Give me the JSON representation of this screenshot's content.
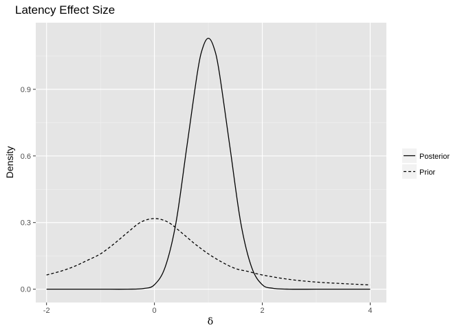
{
  "chart_data": {
    "type": "line",
    "title": "Latency Effect Size",
    "xlabel": "δ",
    "ylabel": "Density",
    "xlim": [
      -2.2,
      4.3
    ],
    "ylim": [
      -0.06,
      1.2
    ],
    "x_ticks": [
      -2,
      0,
      2,
      4
    ],
    "x_tick_labels": [
      "-2",
      "0",
      "2",
      "4"
    ],
    "y_ticks": [
      0,
      0.3,
      0.6,
      0.9
    ],
    "y_tick_labels": [
      "0.0",
      "0.3",
      "0.6",
      "0.9"
    ],
    "grid": true,
    "legend_position": "right",
    "background": "#e5e5e5",
    "series": [
      {
        "name": "Posterior",
        "linestyle": "solid",
        "color": "#000000",
        "x": [
          -2.0,
          -1.5,
          -1.0,
          -0.5,
          -0.2,
          0.0,
          0.2,
          0.4,
          0.6,
          0.8,
          0.9,
          1.0,
          1.1,
          1.2,
          1.4,
          1.6,
          1.8,
          2.0,
          2.2,
          2.5,
          3.0,
          3.5,
          4.0
        ],
        "y": [
          0.0,
          0.0,
          0.0,
          0.0,
          0.003,
          0.02,
          0.1,
          0.3,
          0.64,
          0.98,
          1.09,
          1.13,
          1.09,
          0.98,
          0.64,
          0.3,
          0.1,
          0.02,
          0.004,
          0.0,
          0.0,
          0.0,
          0.0
        ]
      },
      {
        "name": "Prior",
        "linestyle": "dashed",
        "color": "#000000",
        "x": [
          -2.0,
          -1.75,
          -1.5,
          -1.25,
          -1.0,
          -0.75,
          -0.5,
          -0.25,
          0.0,
          0.25,
          0.5,
          0.75,
          1.0,
          1.25,
          1.5,
          1.75,
          2.0,
          2.5,
          3.0,
          3.5,
          4.0
        ],
        "y": [
          0.064,
          0.08,
          0.101,
          0.129,
          0.159,
          0.204,
          0.255,
          0.302,
          0.318,
          0.302,
          0.255,
          0.204,
          0.159,
          0.122,
          0.093,
          0.079,
          0.064,
          0.044,
          0.032,
          0.025,
          0.019
        ]
      }
    ]
  }
}
